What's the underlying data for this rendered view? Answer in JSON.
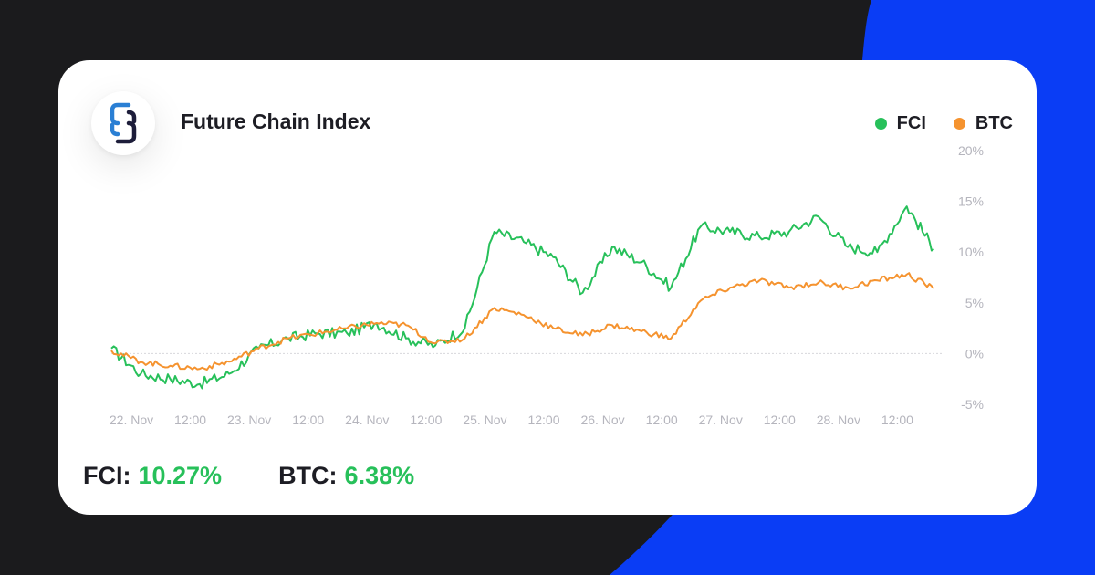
{
  "colors": {
    "fci": "#27c05a",
    "btc": "#f5932f",
    "accent_blue": "#0a3df5",
    "background": "#1b1b1d"
  },
  "header": {
    "logo_icon": "chain-link-icon",
    "title": "Future Chain Index"
  },
  "stats": [
    {
      "label": "FCI:",
      "value": "10.27%"
    },
    {
      "label": "BTC:",
      "value": "6.38%"
    }
  ],
  "chart_data": {
    "type": "line",
    "title": "Future Chain Index",
    "xlabel": "",
    "ylabel": "",
    "x_ticks": [
      "22. Nov",
      "12:00",
      "23. Nov",
      "12:00",
      "24. Nov",
      "12:00",
      "25. Nov",
      "12:00",
      "26. Nov",
      "12:00",
      "27. Nov",
      "12:00",
      "28. Nov",
      "12:00"
    ],
    "x_range_days": [
      0,
      7
    ],
    "y_ticks": [
      "-5%",
      "0%",
      "5%",
      "10%",
      "15%",
      "20%"
    ],
    "ylim": [
      -5,
      20
    ],
    "y_unit": "%",
    "grid": false,
    "zero_line": true,
    "legend_position": "top-right",
    "x": [
      0,
      0.25,
      0.5,
      0.75,
      1.0,
      1.25,
      1.5,
      1.75,
      2.0,
      2.25,
      2.5,
      2.75,
      3.0,
      3.25,
      3.5,
      3.75,
      4.0,
      4.25,
      4.5,
      4.75,
      5.0,
      5.25,
      5.5,
      5.75,
      6.0,
      6.25,
      6.5,
      6.75,
      6.98
    ],
    "series": [
      {
        "name": "FCI",
        "color": "#27c05a",
        "values": [
          0.5,
          -2.0,
          -2.5,
          -3.0,
          -2.0,
          0.5,
          1.5,
          2.0,
          2.0,
          3.0,
          1.5,
          0.8,
          2.5,
          12.0,
          11.0,
          9.5,
          6.0,
          10.5,
          9.0,
          6.5,
          12.5,
          12.0,
          11.5,
          12.0,
          13.5,
          10.5,
          10.0,
          14.5,
          10.3
        ]
      },
      {
        "name": "BTC",
        "color": "#f5932f",
        "values": [
          0.3,
          -0.8,
          -1.2,
          -1.5,
          -0.8,
          0.5,
          1.5,
          2.0,
          2.5,
          3.0,
          2.8,
          1.0,
          1.5,
          4.5,
          3.8,
          2.5,
          1.8,
          2.8,
          2.2,
          1.5,
          5.2,
          6.5,
          7.2,
          6.5,
          7.0,
          6.5,
          7.2,
          7.8,
          6.4
        ]
      }
    ]
  }
}
